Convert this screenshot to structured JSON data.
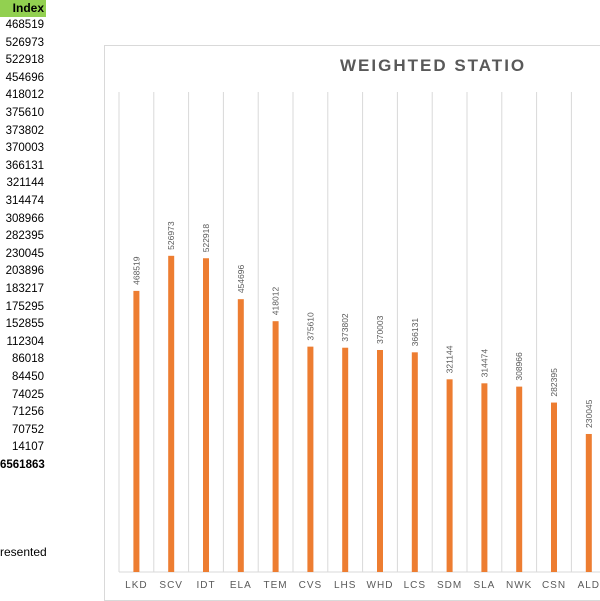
{
  "sheet": {
    "column_header": "Index",
    "values": [
      "468519",
      "526973",
      "522918",
      "454696",
      "418012",
      "375610",
      "373802",
      "370003",
      "366131",
      "321144",
      "314474",
      "308966",
      "282395",
      "230045",
      "203896",
      "183217",
      "175295",
      "152855",
      "112304",
      "86018",
      "84450",
      "74025",
      "71256",
      "70752",
      "14107"
    ],
    "total": "6561863",
    "footnote": "resented"
  },
  "chart_data": {
    "type": "bar",
    "title": "WEIGHTED STATIO",
    "categories": [
      "LKD",
      "SCV",
      "IDT",
      "ELA",
      "TEM",
      "CVS",
      "LHS",
      "WHD",
      "LCS",
      "SDM",
      "SLA",
      "NWK",
      "CSN",
      "ALD"
    ],
    "values": [
      468519,
      526973,
      522918,
      454696,
      418012,
      375610,
      373802,
      370003,
      366131,
      321144,
      314474,
      308966,
      282395,
      230045
    ],
    "data_labels": [
      "468519",
      "526973",
      "522918",
      "454696",
      "418012",
      "375610",
      "373802",
      "370003",
      "366131",
      "321144",
      "314474",
      "308966",
      "282395",
      "230045"
    ],
    "ylim": [
      0,
      800000
    ],
    "grid": "vertical",
    "bar_color": "#ed7d31",
    "grid_color": "#d9d9d9"
  }
}
